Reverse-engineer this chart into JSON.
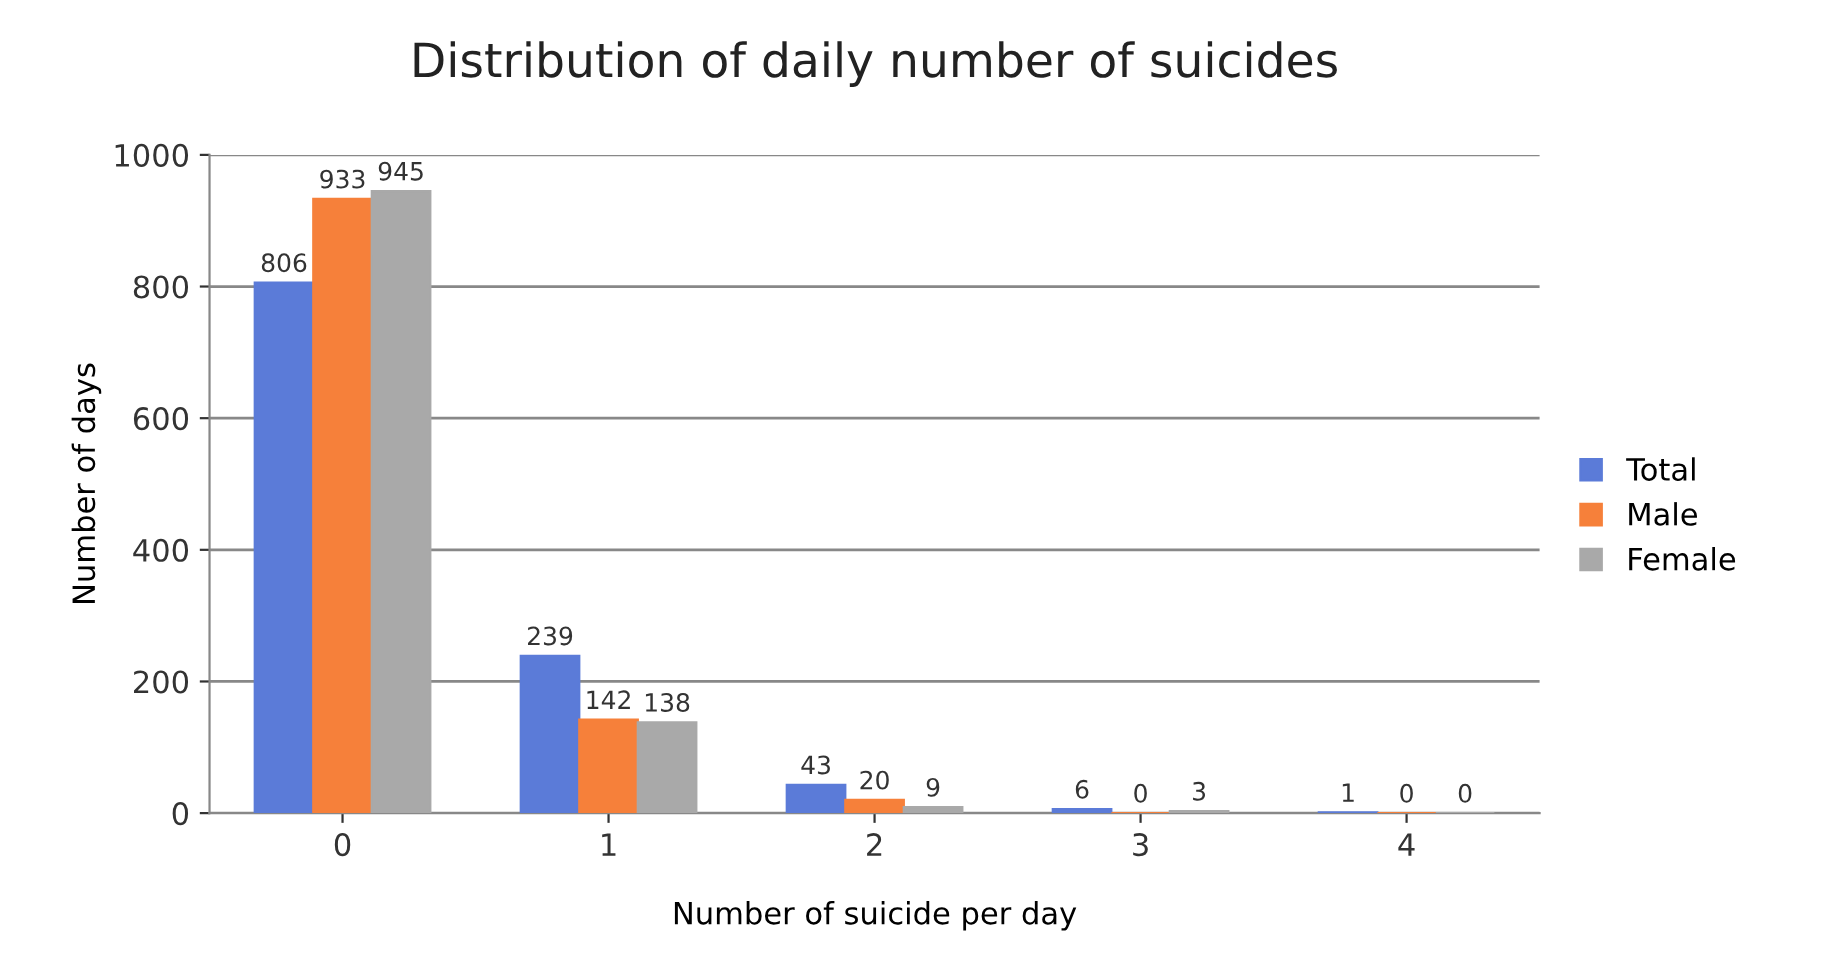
{
  "chart_data": {
    "type": "bar",
    "title": "Distribution of daily number of suicides",
    "xlabel": "Number of suicide per day",
    "ylabel": "Number of days",
    "categories": [
      "0",
      "1",
      "2",
      "3",
      "4"
    ],
    "series": [
      {
        "name": "Total",
        "color": "#5b7bd8",
        "values": [
          806,
          239,
          43,
          6,
          1
        ]
      },
      {
        "name": "Male",
        "color": "#f6803a",
        "values": [
          933,
          142,
          20,
          0,
          0
        ]
      },
      {
        "name": "Female",
        "color": "#a9a9a9",
        "values": [
          945,
          138,
          9,
          3,
          0
        ]
      }
    ],
    "ylim": [
      0,
      1000
    ],
    "yticks": [
      0,
      200,
      400,
      600,
      800,
      1000
    ],
    "grid": "y",
    "legend": "right",
    "data_labels": true
  }
}
